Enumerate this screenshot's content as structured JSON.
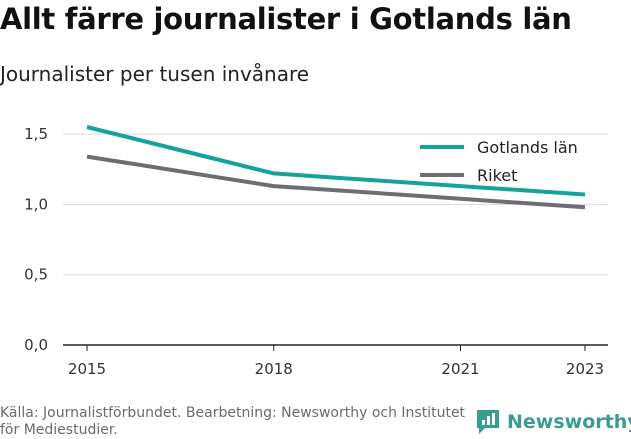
{
  "title": "Allt färre journalister i Gotlands län",
  "subtitle": "Journalister per tusen invånare",
  "source": "Källa: Journalistförbundet. Bearbetning: Newsworthy och Institutet för Mediestudier.",
  "logo": {
    "text": "Newsworthy",
    "icon": "newsworthy-logo-icon"
  },
  "colors": {
    "gotland": "#14a398",
    "riket": "#6f6d74",
    "grid": "#d9d9d9",
    "axis": "#222222",
    "logo": "#3a9c8e"
  },
  "chart_data": {
    "type": "line",
    "title": "Allt färre journalister i Gotlands län",
    "subtitle": "Journalister per tusen invånare",
    "x": [
      2015,
      2016,
      2017,
      2018,
      2019,
      2020,
      2021,
      2022,
      2023
    ],
    "x_ticks": [
      "2015",
      "2018",
      "2021",
      "2023"
    ],
    "y_ticks": [
      "0,0",
      "0,5",
      "1,0",
      "1,5"
    ],
    "y_tick_values": [
      0,
      0.5,
      1.0,
      1.5
    ],
    "ylim": [
      0,
      1.6
    ],
    "xlim": [
      2015,
      2023
    ],
    "grid": true,
    "legend_position": "top-right",
    "series": [
      {
        "name": "Gotlands län",
        "color": "#14a398",
        "values": [
          1.55,
          1.44,
          1.33,
          1.22,
          1.19,
          1.16,
          1.13,
          1.1,
          1.07
        ]
      },
      {
        "name": "Riket",
        "color": "#6f6d74",
        "values": [
          1.34,
          1.27,
          1.2,
          1.13,
          1.1,
          1.07,
          1.04,
          1.01,
          0.98
        ]
      }
    ]
  }
}
